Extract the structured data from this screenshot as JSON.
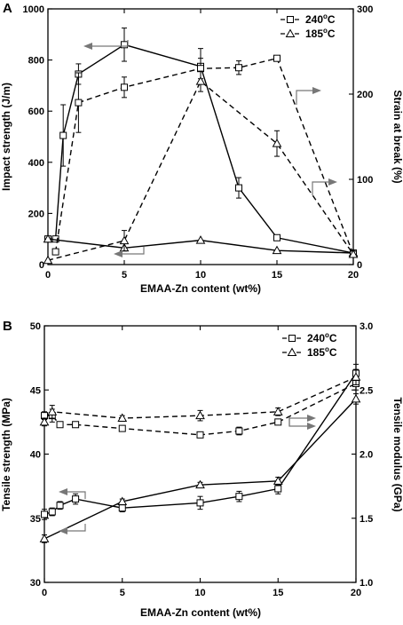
{
  "chart_data": [
    {
      "panel": "A",
      "type": "line",
      "xlabel": "EMAA-Zn content (wt%)",
      "ylabel": "Impact strength (J/m)",
      "y2label": "Strain at break (%)",
      "xlim": [
        0,
        20
      ],
      "ylim": [
        0,
        1000
      ],
      "y2lim": [
        0,
        300
      ],
      "xticks": [
        "0",
        "5",
        "10",
        "15",
        "20"
      ],
      "yticks": [
        "0",
        "200",
        "400",
        "600",
        "800",
        "1000"
      ],
      "y2ticks": [
        "0",
        "100",
        "200",
        "300"
      ],
      "legend_position": "top-right",
      "legend": [
        {
          "label": "240",
          "sup": "o",
          "unit": "C",
          "marker": "square",
          "dash": "dashed"
        },
        {
          "label": "185",
          "sup": "o",
          "unit": "C",
          "marker": "triangle",
          "dash": "dashed"
        }
      ],
      "series": [
        {
          "name": "240°C",
          "axis": "left",
          "marker": "square",
          "dash": "solid",
          "x": [
            0,
            0.5,
            1,
            2,
            5,
            10,
            12.5,
            15,
            20
          ],
          "y": [
            100,
            100,
            505,
            745,
            860,
            775,
            300,
            105,
            45
          ],
          "err": [
            0,
            0,
            120,
            40,
            65,
            70,
            40,
            0,
            0
          ]
        },
        {
          "name": "185°C",
          "axis": "left",
          "marker": "triangle",
          "dash": "solid",
          "x": [
            0,
            5,
            10,
            15,
            20
          ],
          "y": [
            100,
            65,
            95,
            55,
            45
          ],
          "err": [
            0,
            0,
            0,
            0,
            0
          ]
        },
        {
          "name": "240°C",
          "axis": "right",
          "marker": "square",
          "dash": "dashed",
          "x": [
            0.5,
            2,
            5,
            10,
            12.5,
            15,
            20
          ],
          "y": [
            15,
            190,
            208,
            230,
            231,
            242,
            12
          ],
          "err": [
            0,
            35,
            12,
            12,
            8,
            0,
            0
          ]
        },
        {
          "name": "185°C",
          "axis": "right",
          "marker": "triangle",
          "dash": "dashed",
          "x": [
            0,
            5,
            10,
            15,
            20
          ],
          "y": [
            5,
            28,
            215,
            142,
            12
          ],
          "err": [
            0,
            12,
            12,
            15,
            0
          ]
        }
      ]
    },
    {
      "panel": "B",
      "type": "line",
      "xlabel": "EMAA-Zn content (wt%)",
      "ylabel": "Tensile strength (MPa)",
      "y2label": "Tensile modulus (GPa)",
      "xlim": [
        0,
        20
      ],
      "ylim": [
        30,
        50
      ],
      "y2lim": [
        1.0,
        3.0
      ],
      "xticks": [
        "0",
        "5",
        "10",
        "15",
        "20"
      ],
      "yticks": [
        "30",
        "35",
        "40",
        "45",
        "50"
      ],
      "y2ticks": [
        "1.0",
        "1.5",
        "2.0",
        "2.5",
        "3.0"
      ],
      "legend_position": "top-right",
      "legend": [
        {
          "label": "240",
          "sup": "o",
          "unit": "C",
          "marker": "square",
          "dash": "dashed"
        },
        {
          "label": "185",
          "sup": "o",
          "unit": "C",
          "marker": "triangle",
          "dash": "dashed"
        }
      ],
      "series": [
        {
          "name": "240°C",
          "axis": "left",
          "marker": "square",
          "dash": "solid",
          "x": [
            0,
            0.5,
            1,
            2,
            5,
            10,
            12.5,
            15,
            20
          ],
          "y": [
            35.3,
            35.5,
            36.0,
            36.5,
            35.8,
            36.2,
            36.7,
            37.3,
            46.3
          ],
          "err": [
            0.4,
            0.3,
            0.3,
            0.4,
            0.3,
            0.5,
            0.4,
            0.4,
            0.7
          ]
        },
        {
          "name": "185°C",
          "axis": "left",
          "marker": "triangle",
          "dash": "solid",
          "x": [
            0,
            5,
            10,
            15,
            20
          ],
          "y": [
            33.4,
            36.3,
            37.6,
            37.9,
            44.3
          ],
          "err": [
            0.3,
            0.2,
            0.2,
            0.3,
            0.4
          ]
        },
        {
          "name": "240°C",
          "axis": "right",
          "marker": "square",
          "dash": "dashed",
          "x": [
            0,
            0.5,
            1,
            2,
            5,
            10,
            12.5,
            15,
            20
          ],
          "y": [
            2.3,
            2.3,
            2.23,
            2.23,
            2.2,
            2.15,
            2.18,
            2.25,
            2.55
          ],
          "err": [
            0.03,
            0.05,
            0.02,
            0.02,
            0.02,
            0.02,
            0.03,
            0.02,
            0.05
          ]
        },
        {
          "name": "185°C",
          "axis": "right",
          "marker": "triangle",
          "dash": "dashed",
          "x": [
            0,
            0.5,
            5,
            10,
            15,
            20
          ],
          "y": [
            2.25,
            2.33,
            2.28,
            2.3,
            2.33,
            2.6
          ],
          "err": [
            0.03,
            0.05,
            0.02,
            0.04,
            0.03,
            0.06
          ]
        }
      ]
    }
  ]
}
